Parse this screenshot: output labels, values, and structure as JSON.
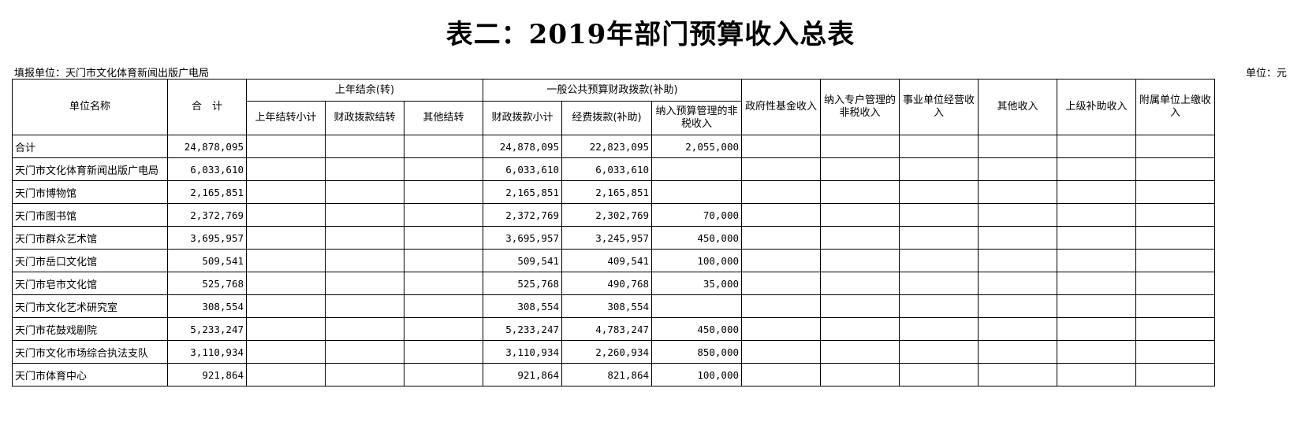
{
  "title": "表二：2019年部门预算收入总表",
  "unit_left": "填报单位：天门市文化体育新闻出版广电局",
  "unit_right": "单位：元",
  "headers": {
    "name": "单位名称",
    "total": "合　计",
    "carryover": "上年结余(转)",
    "carryover_sub": [
      "上年结转小计",
      "财政拨款结转",
      "其他结转"
    ],
    "general": "一般公共预算财政拨款(补助)",
    "general_sub": [
      "财政拨款小计",
      "经费拨款(补助)",
      "纳入预算管理的非税收入"
    ],
    "gov_fund": "政府性基金收入",
    "special": "纳入专户管理的非税收入",
    "business": "事业单位经营收入",
    "other": "其他收入",
    "subsidy": "上级补助收入",
    "affiliated": "附属单位上缴收入"
  },
  "rows": [
    [
      "合计",
      "24,878,095",
      "",
      "",
      "",
      "24,878,095",
      "22,823,095",
      "2,055,000",
      "",
      "",
      "",
      "",
      "",
      ""
    ],
    [
      "天门市文化体育新闻出版广电局",
      "6,033,610",
      "",
      "",
      "",
      "6,033,610",
      "6,033,610",
      "",
      "",
      "",
      "",
      "",
      "",
      ""
    ],
    [
      "天门市博物馆",
      "2,165,851",
      "",
      "",
      "",
      "2,165,851",
      "2,165,851",
      "",
      "",
      "",
      "",
      "",
      "",
      ""
    ],
    [
      "天门市图书馆",
      "2,372,769",
      "",
      "",
      "",
      "2,372,769",
      "2,302,769",
      "70,000",
      "",
      "",
      "",
      "",
      "",
      ""
    ],
    [
      "天门市群众艺术馆",
      "3,695,957",
      "",
      "",
      "",
      "3,695,957",
      "3,245,957",
      "450,000",
      "",
      "",
      "",
      "",
      "",
      ""
    ],
    [
      "天门市岳口文化馆",
      "509,541",
      "",
      "",
      "",
      "509,541",
      "409,541",
      "100,000",
      "",
      "",
      "",
      "",
      "",
      ""
    ],
    [
      "天门市皂市文化馆",
      "525,768",
      "",
      "",
      "",
      "525,768",
      "490,768",
      "35,000",
      "",
      "",
      "",
      "",
      "",
      ""
    ],
    [
      "天门市文化艺术研究室",
      "308,554",
      "",
      "",
      "",
      "308,554",
      "308,554",
      "",
      "",
      "",
      "",
      "",
      "",
      ""
    ],
    [
      "天门市花鼓戏剧院",
      "5,233,247",
      "",
      "",
      "",
      "5,233,247",
      "4,783,247",
      "450,000",
      "",
      "",
      "",
      "",
      "",
      ""
    ],
    [
      "天门市文化市场综合执法支队",
      "3,110,934",
      "",
      "",
      "",
      "3,110,934",
      "2,260,934",
      "850,000",
      "",
      "",
      "",
      "",
      "",
      ""
    ],
    [
      "天门市体育中心",
      "921,864",
      "",
      "",
      "",
      "921,864",
      "821,864",
      "100,000",
      "",
      "",
      "",
      "",
      "",
      ""
    ]
  ]
}
